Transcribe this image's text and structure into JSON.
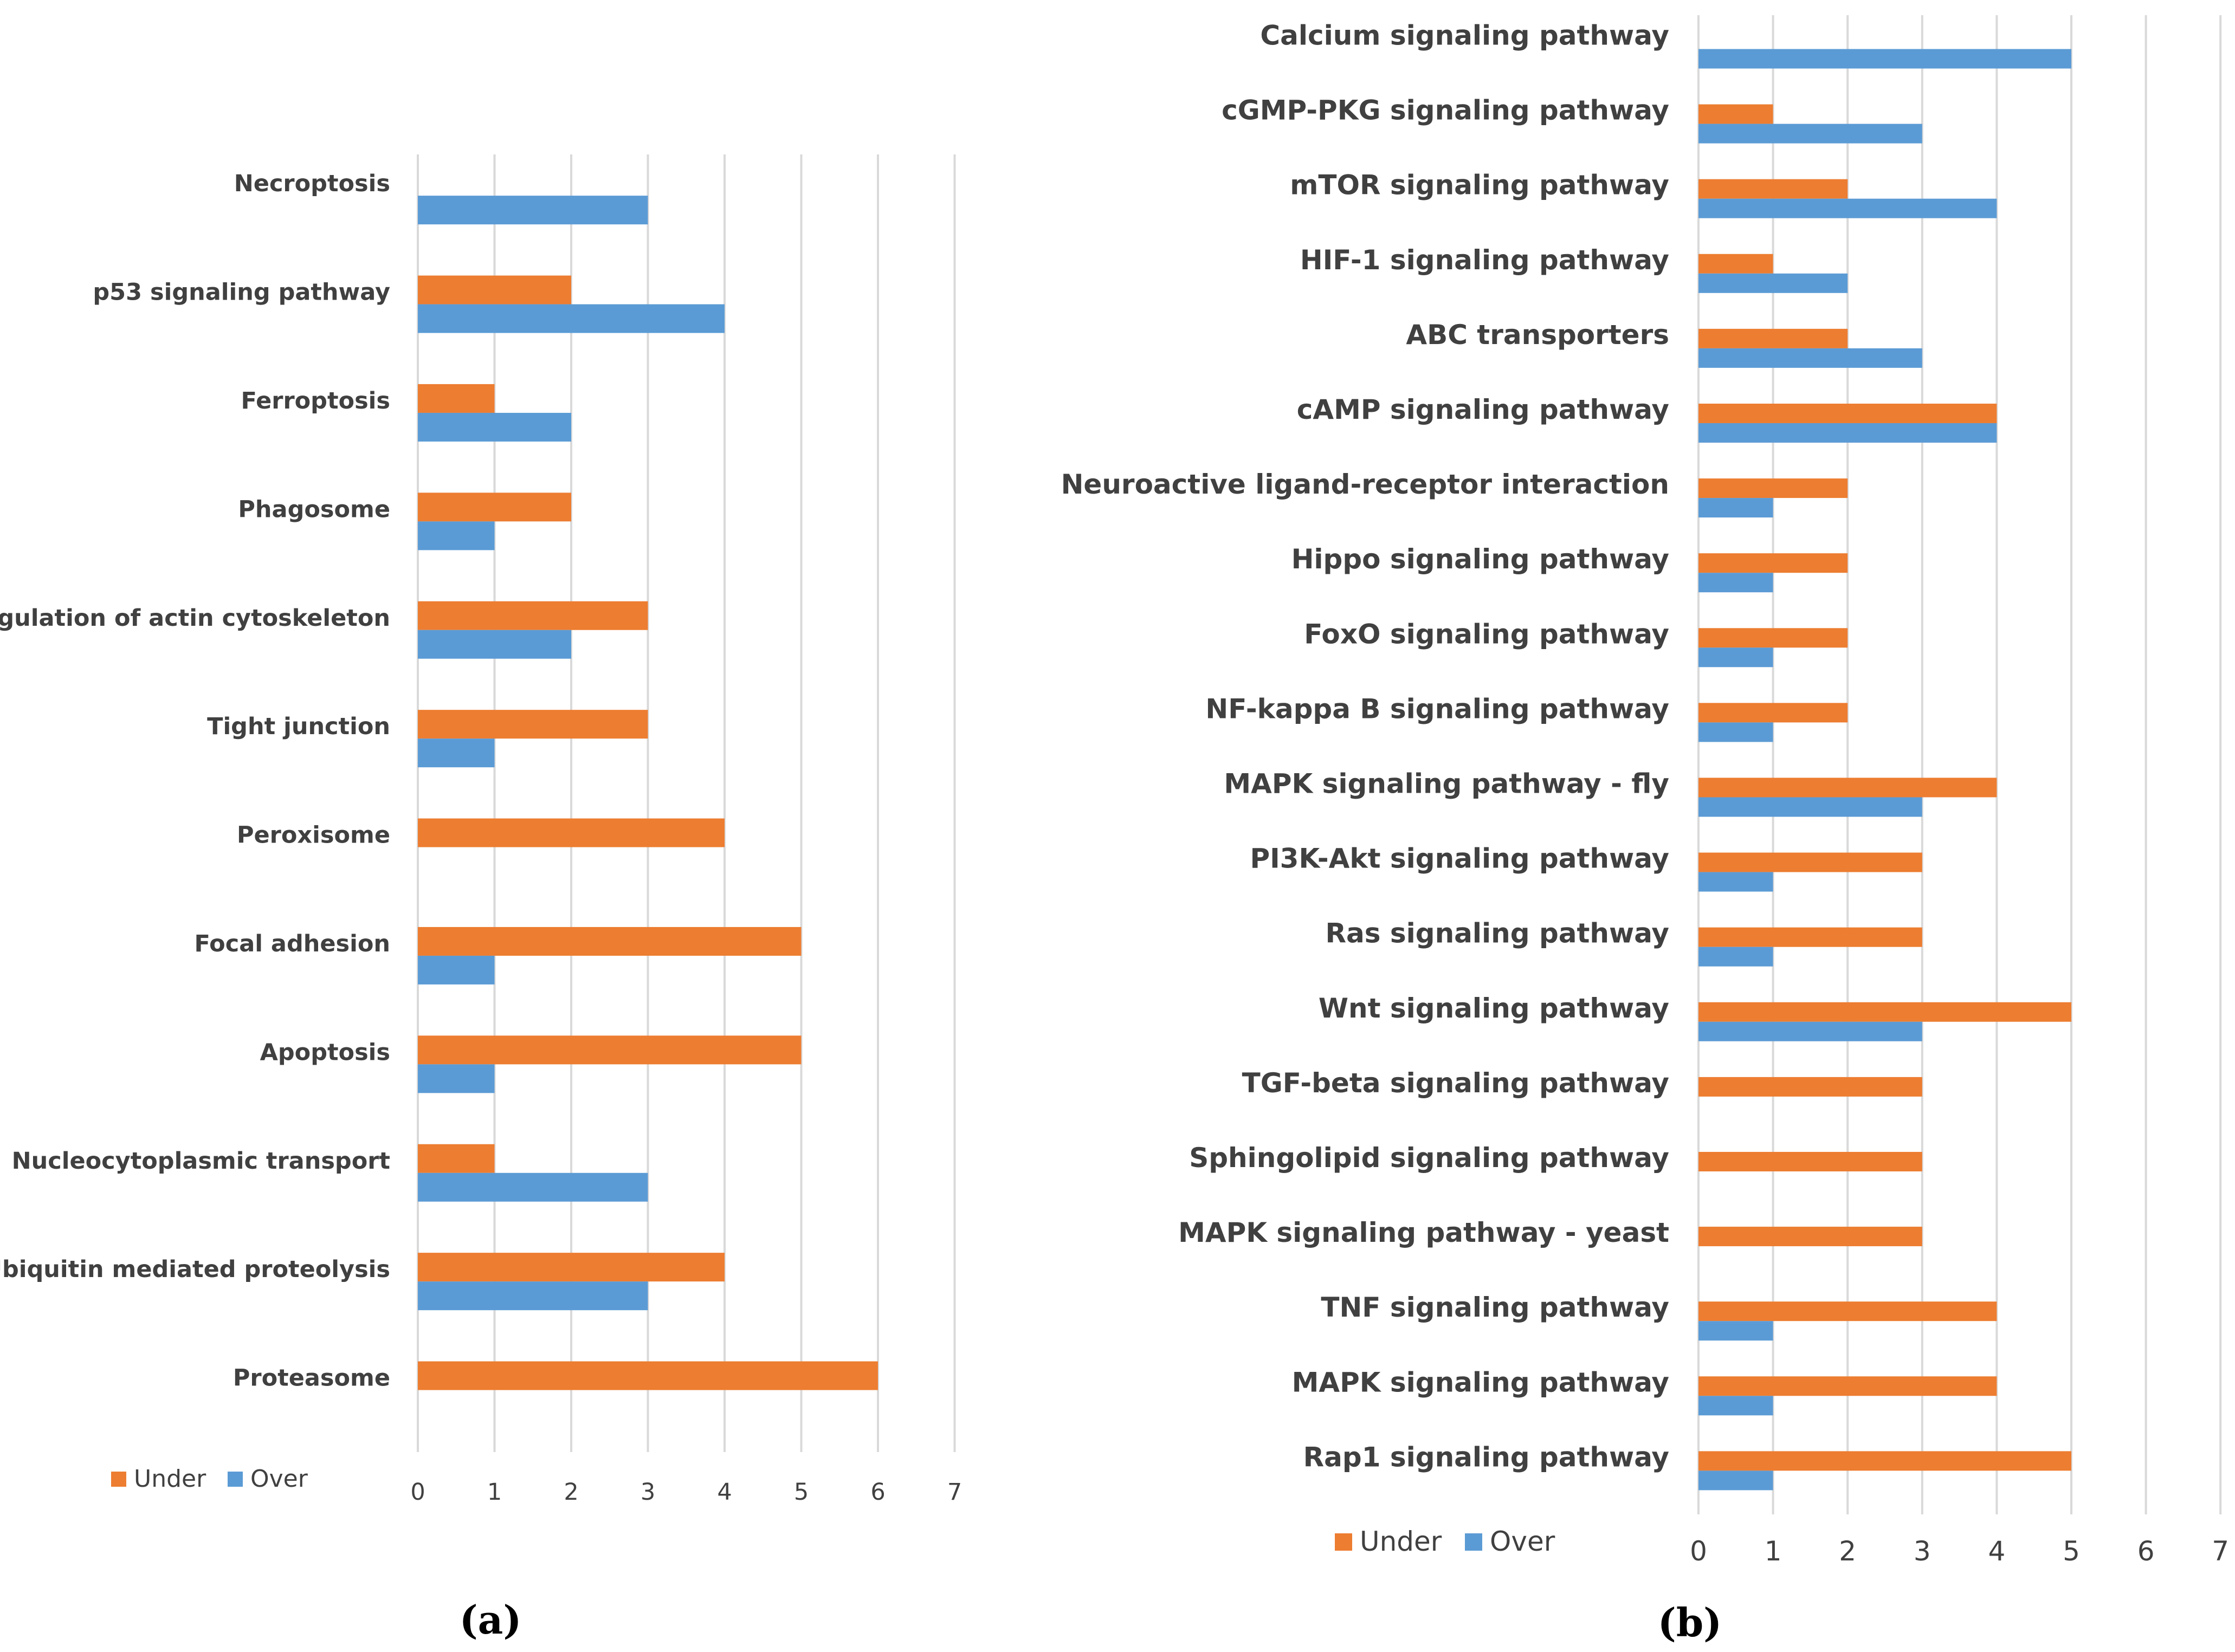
{
  "colors": {
    "under": "#ED7D31",
    "over": "#5B9BD5",
    "grid": "#D9D9D9",
    "text": "#404040"
  },
  "chart_data": [
    {
      "type": "bar",
      "orientation": "horizontal",
      "panel_label": "(a)",
      "title": "",
      "categories": [
        "Necroptosis",
        "p53 signaling pathway",
        "Ferroptosis",
        "Phagosome",
        "Regulation of actin cytoskeleton",
        "Tight junction",
        "Peroxisome",
        "Focal adhesion",
        "Apoptosis",
        "Nucleocytoplasmic transport",
        "Ubiquitin mediated proteolysis",
        "Proteasome"
      ],
      "series": [
        {
          "name": "Under",
          "values": [
            0,
            2,
            1,
            2,
            3,
            3,
            4,
            5,
            5,
            1,
            4,
            6
          ]
        },
        {
          "name": "Over",
          "values": [
            3,
            4,
            2,
            1,
            2,
            1,
            0,
            1,
            1,
            3,
            3,
            0
          ]
        }
      ],
      "xlim": [
        0,
        7
      ],
      "xticks": [
        "0",
        "1",
        "2",
        "3",
        "4",
        "5",
        "6",
        "7"
      ],
      "grid": true,
      "legend": "bottom-left"
    },
    {
      "type": "bar",
      "orientation": "horizontal",
      "panel_label": "(b)",
      "title": "",
      "categories": [
        "Calcium signaling pathway",
        "cGMP-PKG signaling pathway",
        "mTOR signaling pathway",
        "HIF-1 signaling pathway",
        "ABC transporters",
        "cAMP signaling pathway",
        "Neuroactive ligand-receptor interaction",
        "Hippo signaling pathway",
        "FoxO signaling pathway",
        "NF-kappa B signaling pathway",
        "MAPK signaling pathway - fly",
        "PI3K-Akt signaling pathway",
        "Ras signaling pathway",
        "Wnt signaling pathway",
        "TGF-beta signaling pathway",
        "Sphingolipid signaling pathway",
        "MAPK signaling pathway - yeast",
        "TNF signaling pathway",
        "MAPK signaling pathway",
        "Rap1 signaling pathway"
      ],
      "series": [
        {
          "name": "Under",
          "values": [
            0,
            1,
            2,
            1,
            2,
            4,
            2,
            2,
            2,
            2,
            4,
            3,
            3,
            5,
            3,
            3,
            3,
            4,
            4,
            5
          ]
        },
        {
          "name": "Over",
          "values": [
            5,
            3,
            4,
            2,
            3,
            4,
            1,
            1,
            1,
            1,
            3,
            1,
            1,
            3,
            0,
            0,
            0,
            1,
            1,
            1
          ]
        }
      ],
      "xlim": [
        0,
        7
      ],
      "xticks": [
        "0",
        "1",
        "2",
        "3",
        "4",
        "5",
        "6",
        "7"
      ],
      "grid": true,
      "legend": "bottom-left"
    }
  ]
}
